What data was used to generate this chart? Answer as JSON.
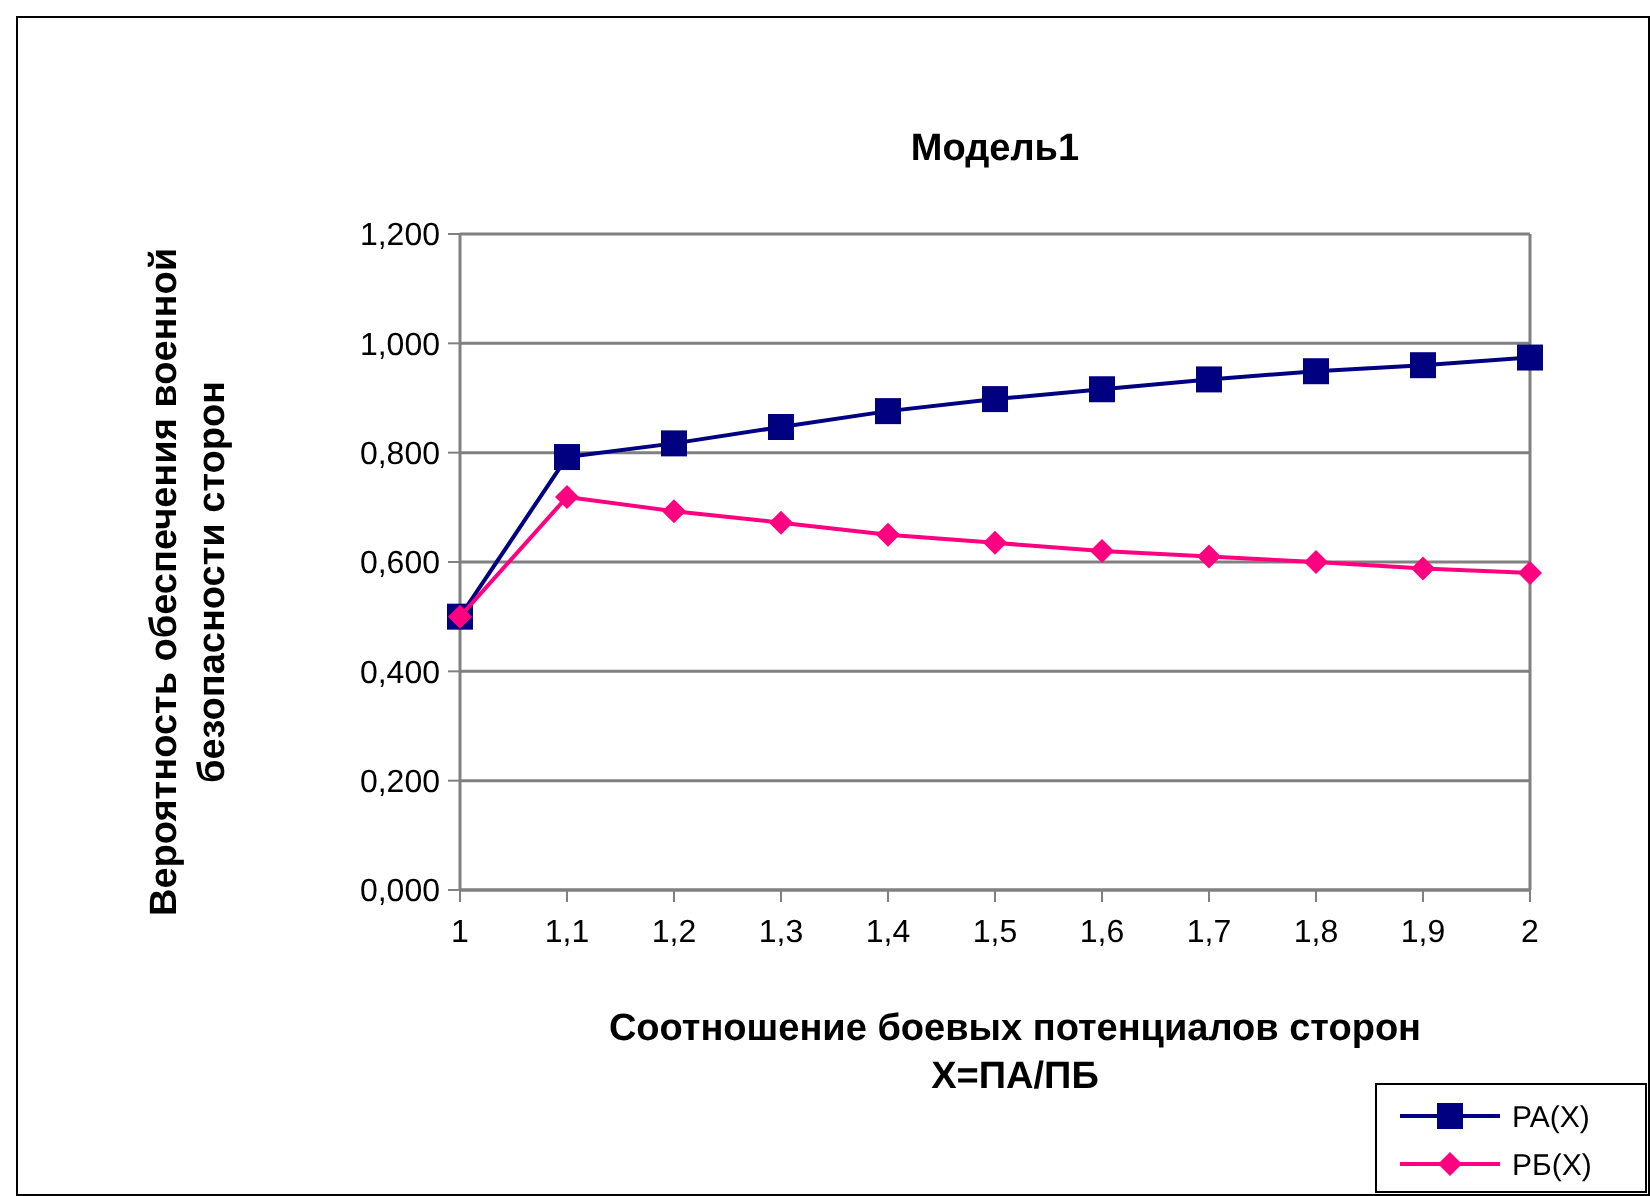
{
  "chart_data": {
    "type": "line",
    "title": "Модель1",
    "xlabel": "Соотношение боевых потенциалов сторон\nX=ПА/ПБ",
    "ylabel": "Вероятность обеспечения военной\nбезопасности сторон",
    "categories": [
      "1",
      "1,1",
      "1,2",
      "1,3",
      "1,4",
      "1,5",
      "1,6",
      "1,7",
      "1,8",
      "1,9",
      "2"
    ],
    "series": [
      {
        "name": "PA(X)",
        "color": "#000080",
        "marker": "square",
        "values": [
          0.5,
          0.792,
          0.817,
          0.847,
          0.876,
          0.898,
          0.916,
          0.934,
          0.949,
          0.96,
          0.974
        ]
      },
      {
        "name": "PБ(X)",
        "color": "#ff0080",
        "marker": "diamond",
        "values": [
          0.5,
          0.719,
          0.693,
          0.672,
          0.65,
          0.635,
          0.62,
          0.61,
          0.6,
          0.588,
          0.58
        ]
      }
    ],
    "ylim": [
      0,
      1.2
    ],
    "yticks": [
      {
        "value": 0,
        "label": "0,000"
      },
      {
        "value": 0.2,
        "label": "0,200"
      },
      {
        "value": 0.4,
        "label": "0,400"
      },
      {
        "value": 0.6,
        "label": "0,600"
      },
      {
        "value": 0.8,
        "label": "0,800"
      },
      {
        "value": 1,
        "label": "1,000"
      },
      {
        "value": 1.2,
        "label": "1,200"
      }
    ],
    "grid": "y",
    "legend": "bottom right",
    "line_style": "solid"
  }
}
